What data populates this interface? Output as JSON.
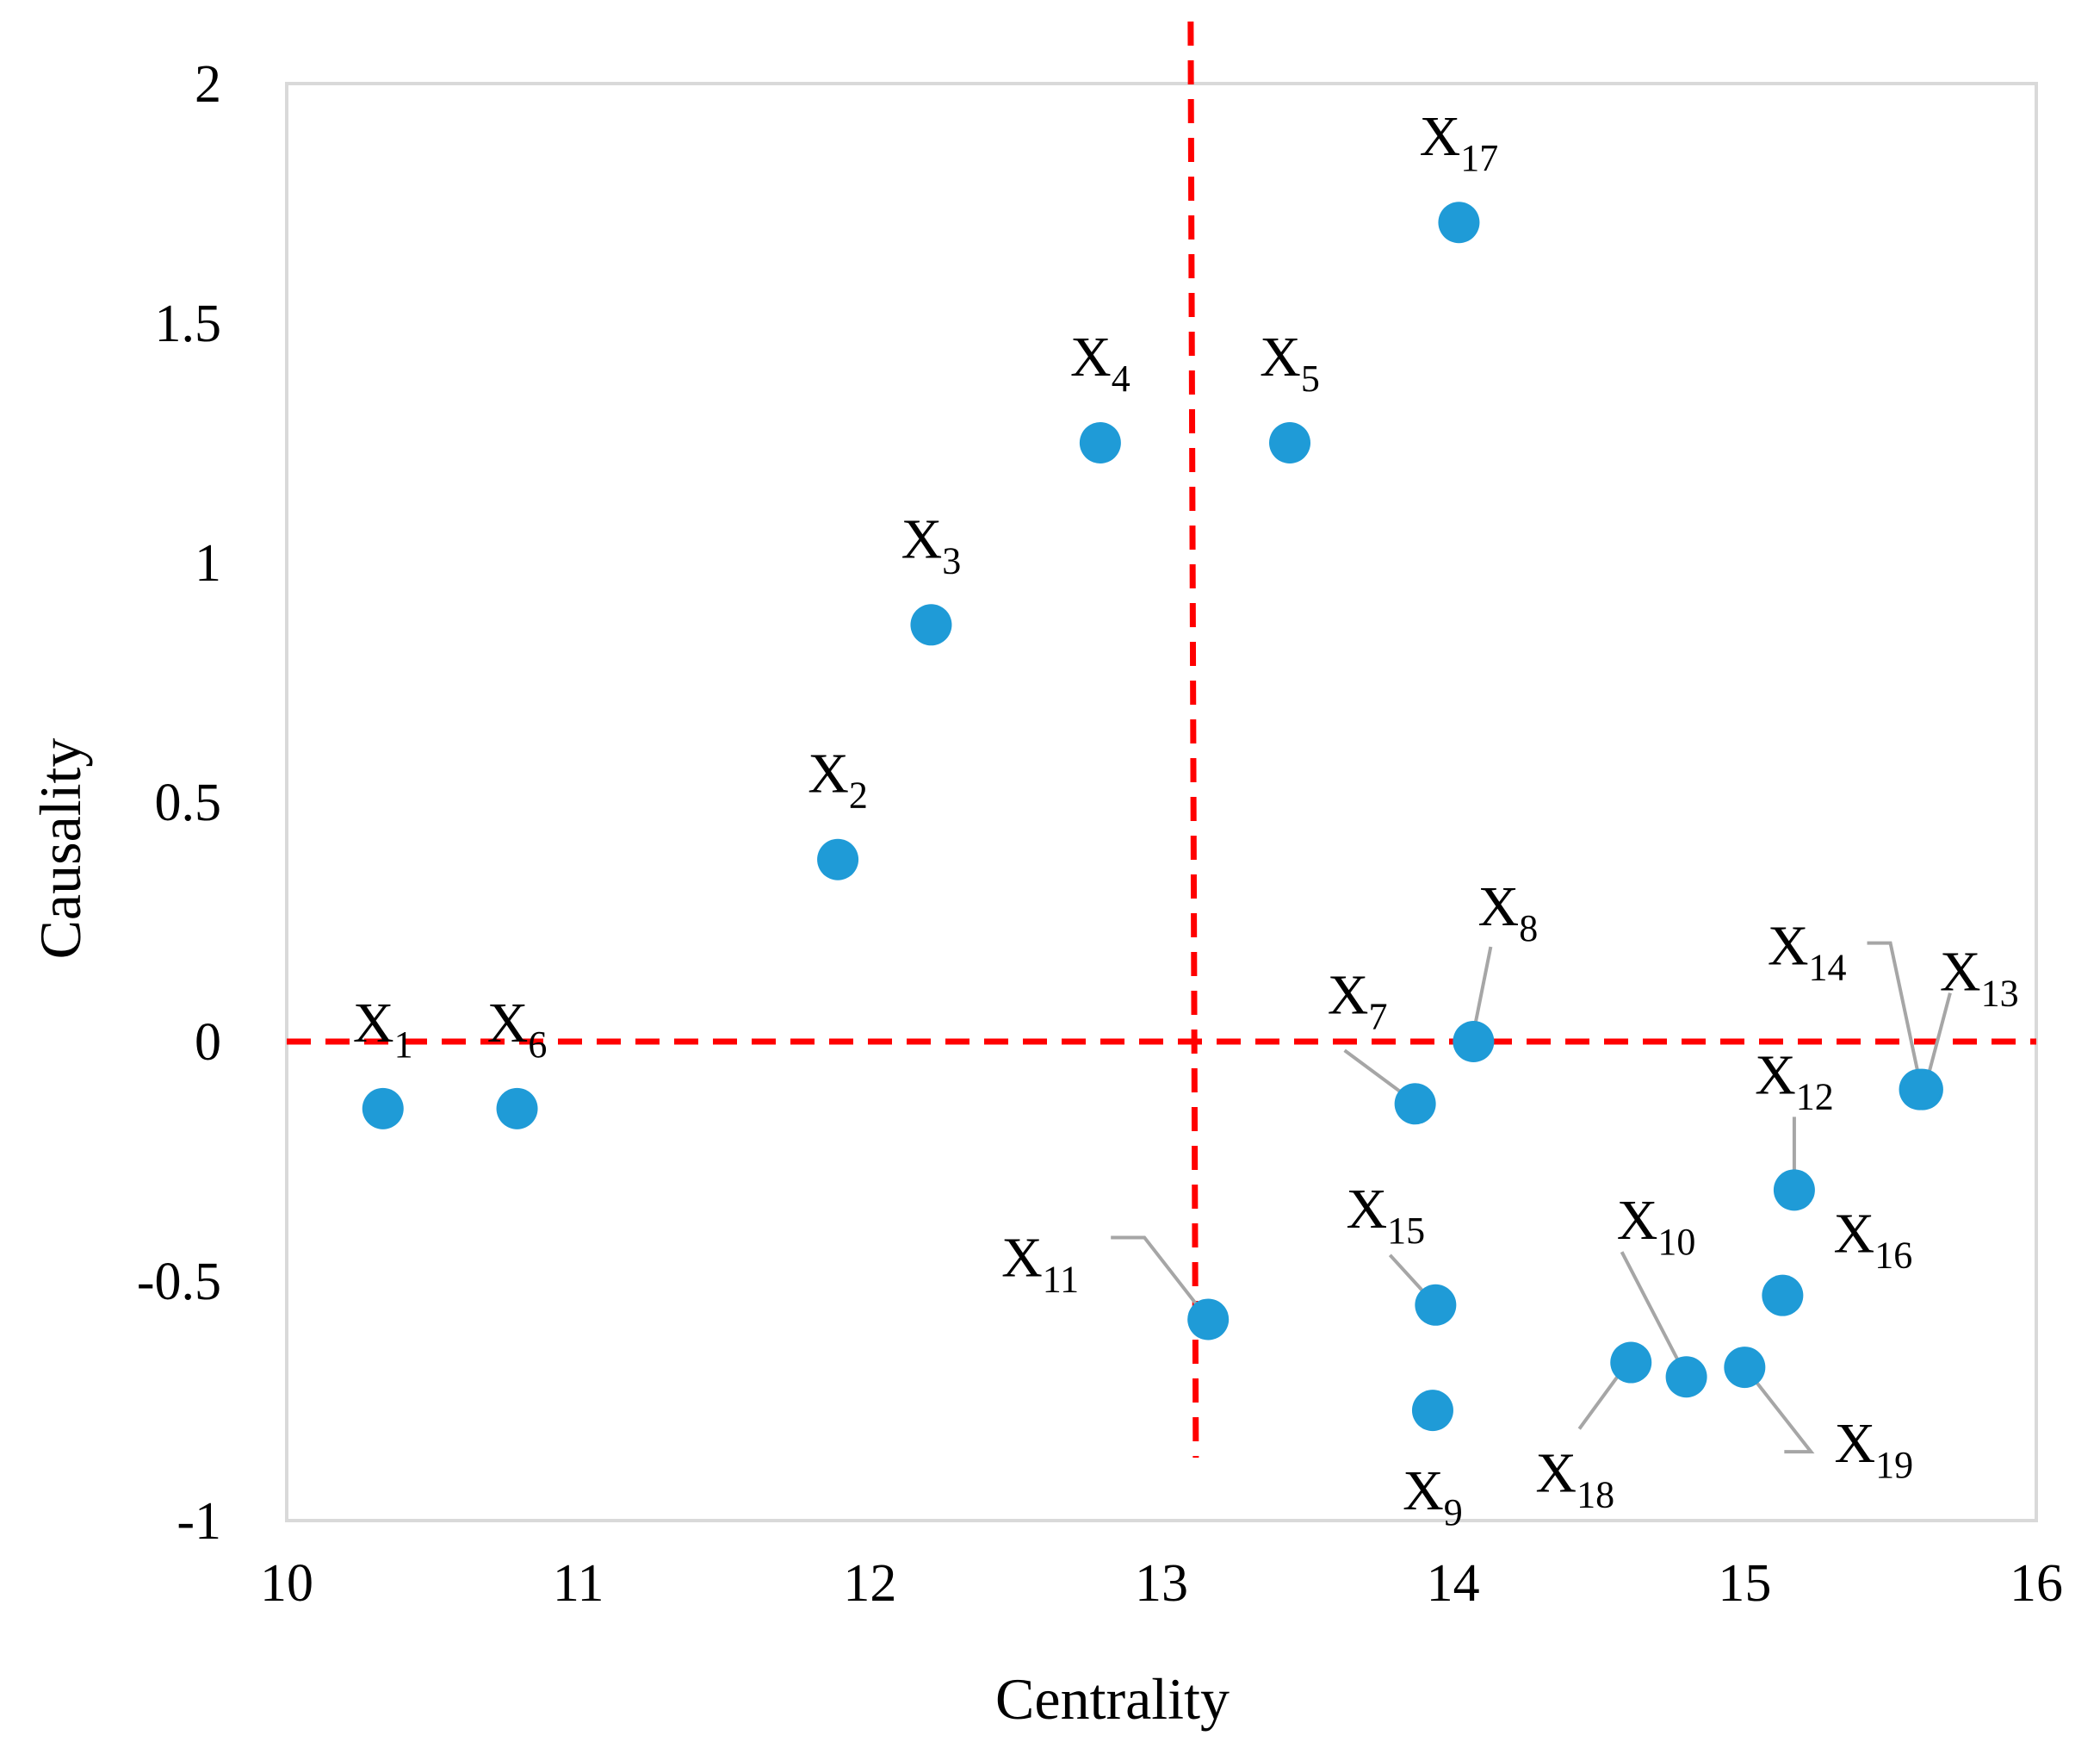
{
  "chart_data": {
    "type": "scatter",
    "xlabel": "Centrality",
    "ylabel": "Causality",
    "xlim": [
      10,
      16
    ],
    "ylim": [
      -1,
      2
    ],
    "x_ticks": [
      "10",
      "11",
      "12",
      "13",
      "14",
      "15",
      "16"
    ],
    "y_ticks": [
      "2",
      "1.5",
      "1",
      "0.5",
      "0",
      "-0.5",
      "-1"
    ],
    "grid": false,
    "marker_color": "#1f9bd7",
    "reference_line_color": "#ff0000",
    "leader_line_color": "#a6a6a6",
    "reference_lines": {
      "x": 13.1,
      "y": 0
    },
    "points": [
      {
        "base": "X",
        "sub": "1",
        "x": 10.33,
        "y": -0.14
      },
      {
        "base": "X",
        "sub": "2",
        "x": 11.89,
        "y": 0.38
      },
      {
        "base": "X",
        "sub": "3",
        "x": 12.21,
        "y": 0.87
      },
      {
        "base": "X",
        "sub": "4",
        "x": 12.79,
        "y": 1.25
      },
      {
        "base": "X",
        "sub": "5",
        "x": 13.44,
        "y": 1.25
      },
      {
        "base": "X",
        "sub": "6",
        "x": 10.79,
        "y": -0.14
      },
      {
        "base": "X",
        "sub": "7",
        "x": 13.87,
        "y": -0.13
      },
      {
        "base": "X",
        "sub": "8",
        "x": 14.07,
        "y": 0.0
      },
      {
        "base": "X",
        "sub": "9",
        "x": 13.93,
        "y": -0.77
      },
      {
        "base": "X",
        "sub": "10",
        "x": 14.8,
        "y": -0.7
      },
      {
        "base": "X",
        "sub": "11",
        "x": 13.16,
        "y": -0.58
      },
      {
        "base": "X",
        "sub": "12",
        "x": 15.17,
        "y": -0.31
      },
      {
        "base": "X",
        "sub": "13",
        "x": 15.61,
        "y": -0.1
      },
      {
        "base": "X",
        "sub": "14",
        "x": 15.6,
        "y": -0.1
      },
      {
        "base": "X",
        "sub": "15",
        "x": 13.94,
        "y": -0.55
      },
      {
        "base": "X",
        "sub": "16",
        "x": 15.13,
        "y": -0.53
      },
      {
        "base": "X",
        "sub": "17",
        "x": 14.02,
        "y": 1.71
      },
      {
        "base": "X",
        "sub": "18",
        "x": 14.61,
        "y": -0.67
      },
      {
        "base": "X",
        "sub": "19",
        "x": 15.0,
        "y": -0.68
      }
    ]
  }
}
